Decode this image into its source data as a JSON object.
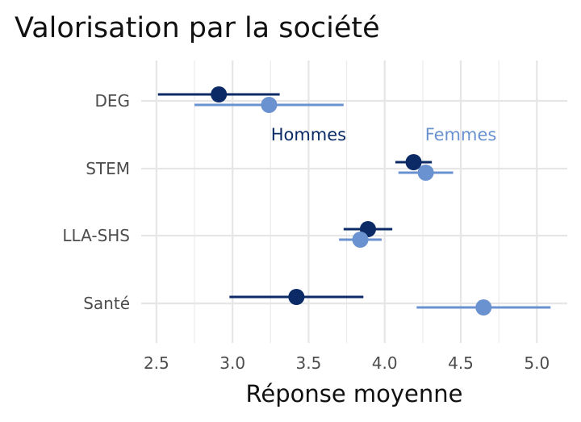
{
  "chart_data": {
    "type": "scatter",
    "subtype": "dot-and-whisker",
    "title": "Valorisation par la société",
    "xlabel": "Réponse moyenne",
    "ylabel": "",
    "xlim": [
      2.4,
      5.2
    ],
    "xticks": [
      2.5,
      3.0,
      3.5,
      4.0,
      4.5,
      5.0
    ],
    "xtick_labels": [
      "2.5",
      "3.0",
      "3.5",
      "4.0",
      "4.5",
      "5.0"
    ],
    "categories": [
      "DEG",
      "STEM",
      "LLA-SHS",
      "Santé"
    ],
    "grid": true,
    "legend": "none",
    "series": [
      {
        "name": "Hommes",
        "color": "#0b2a66",
        "points": [
          {
            "category": "DEG",
            "mean": 2.91,
            "low": 2.51,
            "high": 3.31
          },
          {
            "category": "STEM",
            "mean": 4.19,
            "low": 4.07,
            "high": 4.31
          },
          {
            "category": "LLA-SHS",
            "mean": 3.89,
            "low": 3.73,
            "high": 4.05
          },
          {
            "category": "Santé",
            "mean": 3.42,
            "low": 2.98,
            "high": 3.86
          }
        ]
      },
      {
        "name": "Femmes",
        "color": "#6b92d0",
        "points": [
          {
            "category": "DEG",
            "mean": 3.24,
            "low": 2.75,
            "high": 3.73
          },
          {
            "category": "STEM",
            "mean": 4.27,
            "low": 4.09,
            "high": 4.45
          },
          {
            "category": "LLA-SHS",
            "mean": 3.84,
            "low": 3.7,
            "high": 3.98
          },
          {
            "category": "Santé",
            "mean": 4.65,
            "low": 4.21,
            "high": 5.09
          }
        ]
      }
    ],
    "annotations": [
      {
        "text": "Hommes",
        "series": "Hommes",
        "x": 3.5,
        "category": "STEM"
      },
      {
        "text": "Femmes",
        "series": "Femmes",
        "x": 4.5,
        "category": "STEM"
      }
    ]
  }
}
